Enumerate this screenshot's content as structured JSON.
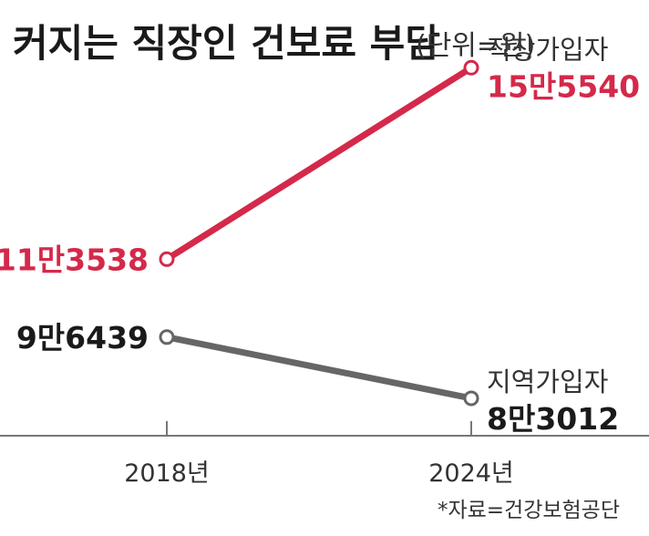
{
  "title": "커지는 직장인 건보료 부담",
  "unit": "(단위=원)",
  "source": "*자료=건강보험공단",
  "colors": {
    "red": "#d4294a",
    "gray": "#666666",
    "axis": "#777777",
    "text": "#333333"
  },
  "chart_data": {
    "type": "line",
    "title": "커지는 직장인 건보료 부담",
    "subtitle": "(단위=원)",
    "x": [
      "2018년",
      "2024년"
    ],
    "xlabel": "",
    "ylabel": "",
    "grid": false,
    "series": [
      {
        "name": "직장가입자",
        "values": [
          113538,
          155540
        ],
        "labels": [
          "11만3538",
          "15만5540"
        ],
        "color": "#d4294a"
      },
      {
        "name": "지역가입자",
        "values": [
          96439,
          83012
        ],
        "labels": [
          "9만6439",
          "8만3012"
        ],
        "color": "#666666"
      }
    ]
  }
}
